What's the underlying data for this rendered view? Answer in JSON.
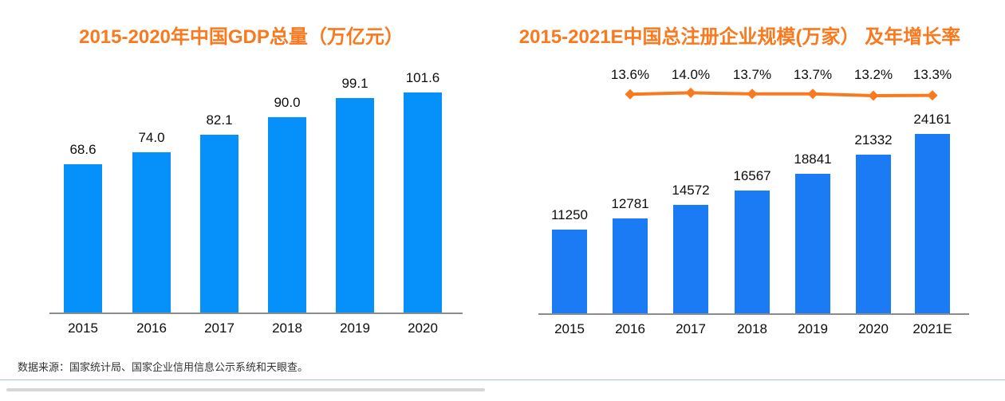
{
  "page": {
    "source_note": "数据来源：国家统计局、国家企业信用信息公示系统和天眼查。"
  },
  "colors": {
    "title_orange": "#F9791E",
    "bar_blue_left": "#0590FA",
    "bar_blue_right": "#1A7BF5",
    "line_orange": "#F9791E",
    "axis_gray": "#8C8C8C",
    "label_black": "#0d0d0d",
    "divider_blue": "#A3C2E8",
    "scrollbar_gray": "#D6D6D6"
  },
  "chart_data": [
    {
      "type": "bar",
      "title": "2015-2020年中国GDP总量（万亿元）",
      "categories": [
        "2015",
        "2016",
        "2017",
        "2018",
        "2019",
        "2020"
      ],
      "values": [
        68.6,
        74.0,
        82.1,
        90.0,
        99.1,
        101.6
      ],
      "value_labels": [
        "68.6",
        "74.0",
        "82.1",
        "90.0",
        "99.1",
        "101.6"
      ],
      "xlabel": "",
      "ylabel": "万亿元",
      "grid": false,
      "legend": "none",
      "bar_color": "#0590FA"
    },
    {
      "type": "bar+line",
      "title": "2015-2021E中国总注册企业规模(万家） 及年增长率",
      "categories": [
        "2015",
        "2016",
        "2017",
        "2018",
        "2019",
        "2020",
        "2021E"
      ],
      "series": [
        {
          "name": "总注册企业规模(万家)",
          "type": "bar",
          "values": [
            11250,
            12781,
            14572,
            16567,
            18841,
            21332,
            24161
          ],
          "value_labels": [
            "11250",
            "12781",
            "14572",
            "16567",
            "18841",
            "21332",
            "24161"
          ],
          "color": "#1A7BF5"
        },
        {
          "name": "年增长率",
          "type": "line",
          "x": [
            "2016",
            "2017",
            "2018",
            "2019",
            "2020",
            "2021E"
          ],
          "values_pct": [
            13.6,
            14.0,
            13.7,
            13.7,
            13.2,
            13.3
          ],
          "labels": [
            "13.6%",
            "14.0%",
            "13.7%",
            "13.7%",
            "13.2%",
            "13.3%"
          ],
          "color": "#F9791E",
          "marker": "diamond"
        }
      ],
      "xlabel": "",
      "ylabel": "万家",
      "grid": false,
      "legend": "none"
    }
  ]
}
